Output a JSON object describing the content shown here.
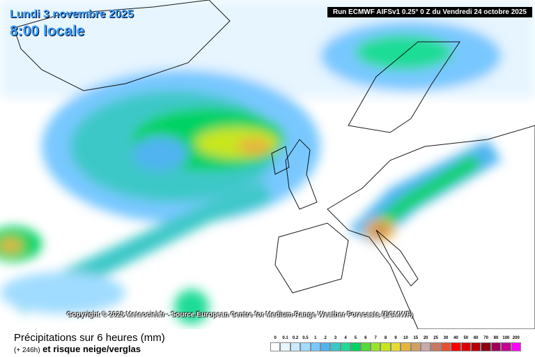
{
  "header": {
    "date": "Lundi 3 novembre 2025",
    "time": "8:00 locale",
    "run": "Run ECMWF AIFSv1 0.25° 0 Z du Vendredi 24 octobre 2025"
  },
  "copyright": "Copyright © 2025 Meteociel.fr - Source European Centre for Medium-Range Weather Forecasts (ECMWF)",
  "footer": {
    "title": "Précipitations sur 6 heures (mm)",
    "lead": "(+ 246h)",
    "subtitle": "et risque neige/verglas"
  },
  "legend": [
    {
      "value": 0,
      "color": "#ffffff"
    },
    {
      "value": 0.1,
      "color": "#e6f5ff"
    },
    {
      "value": 0.2,
      "color": "#c8ebff"
    },
    {
      "value": 0.5,
      "color": "#a0dcff"
    },
    {
      "value": 1,
      "color": "#78c8ff"
    },
    {
      "value": 2,
      "color": "#50b4f0"
    },
    {
      "value": 3,
      "color": "#3cc8c8"
    },
    {
      "value": 4,
      "color": "#1edc96"
    },
    {
      "value": 5,
      "color": "#00d264"
    },
    {
      "value": 6,
      "color": "#50dc3c"
    },
    {
      "value": 7,
      "color": "#96e628"
    },
    {
      "value": 8,
      "color": "#c8e61e"
    },
    {
      "value": 9,
      "color": "#e6dc32"
    },
    {
      "value": 10,
      "color": "#e6b43c"
    },
    {
      "value": 15,
      "color": "#d2a064"
    },
    {
      "value": 20,
      "color": "#c8aaaa"
    },
    {
      "value": 25,
      "color": "#c87864"
    },
    {
      "value": 30,
      "color": "#e65032"
    },
    {
      "value": 40,
      "color": "#ff0000"
    },
    {
      "value": 50,
      "color": "#dc0000"
    },
    {
      "value": 60,
      "color": "#b40000"
    },
    {
      "value": 70,
      "color": "#8c0014"
    },
    {
      "value": 80,
      "color": "#a0005a"
    },
    {
      "value": 100,
      "color": "#c80096"
    },
    {
      "value": 200,
      "color": "#ff00ff"
    }
  ]
}
